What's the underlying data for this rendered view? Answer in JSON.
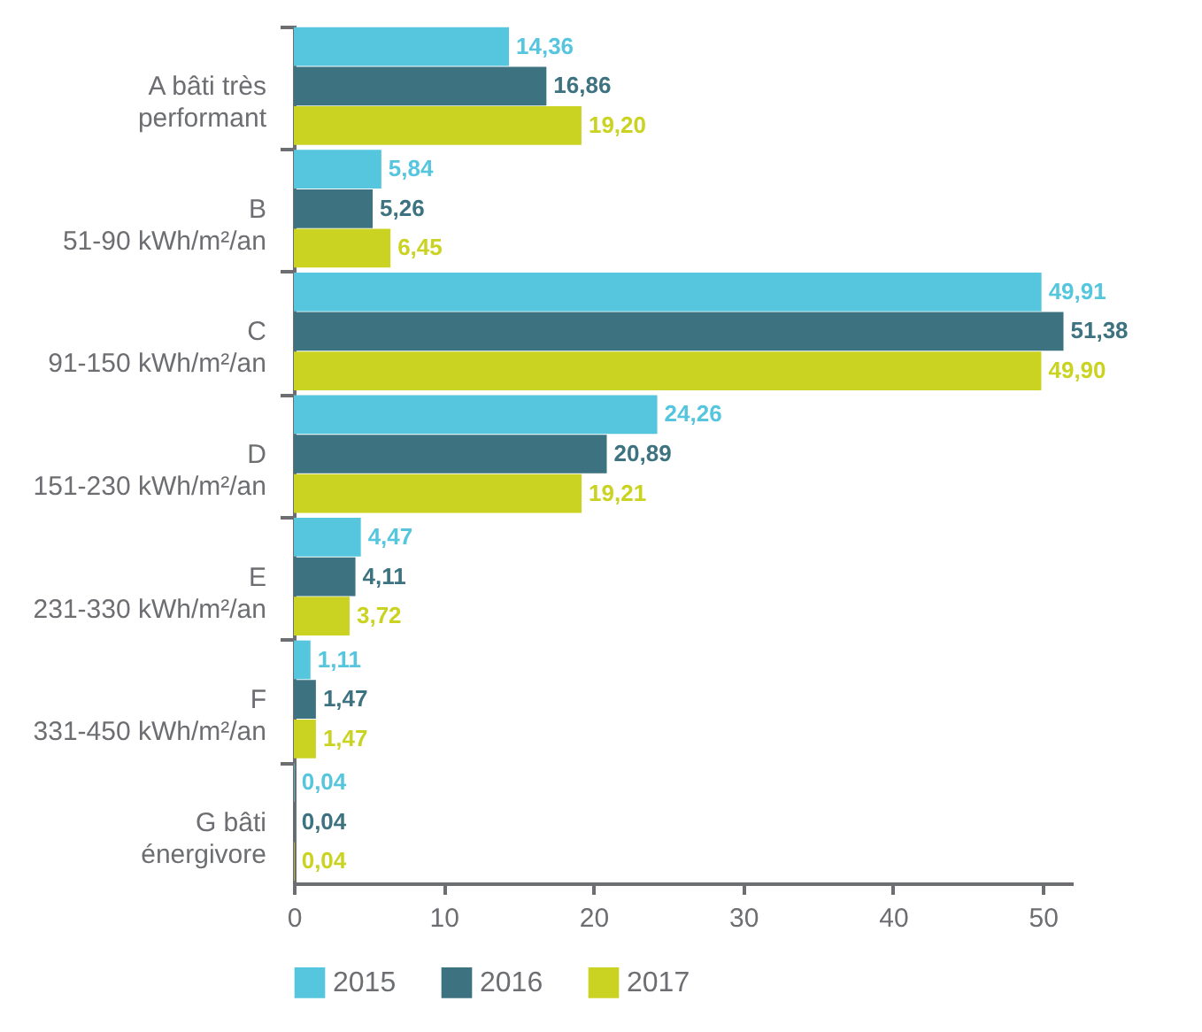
{
  "chart_data": {
    "type": "bar",
    "orientation": "horizontal",
    "categories": [
      "A bâti très\nperformant",
      "B\n51-90 kWh/m²/an",
      "C\n91-150 kWh/m²/an",
      "D\n151-230 kWh/m²/an",
      "E\n231-330 kWh/m²/an",
      "F\n331-450 kWh/m²/an",
      "G bâti\nénergivore"
    ],
    "series": [
      {
        "name": "2015",
        "color": "#55c6de",
        "values": [
          14.36,
          5.84,
          49.91,
          24.26,
          4.47,
          1.11,
          0.04
        ],
        "value_labels": [
          "14,36",
          "5,84",
          "49,91",
          "24,26",
          "4,47",
          "1,11",
          "0,04"
        ]
      },
      {
        "name": "2016",
        "color": "#3d7280",
        "values": [
          16.86,
          5.26,
          51.38,
          20.89,
          4.11,
          1.47,
          0.04
        ],
        "value_labels": [
          "16,86",
          "5,26",
          "51,38",
          "20,89",
          "4,11",
          "1,47",
          "0,04"
        ]
      },
      {
        "name": "2017",
        "color": "#cbd322",
        "values": [
          19.2,
          6.45,
          49.9,
          19.21,
          3.72,
          1.47,
          0.04
        ],
        "value_labels": [
          "19,20",
          "6,45",
          "49,90",
          "19,21",
          "3,72",
          "1,47",
          "0,04"
        ]
      }
    ],
    "xlim": [
      0,
      52
    ],
    "xticks": [
      0,
      10,
      20,
      30,
      40,
      50
    ],
    "grid": false,
    "legend": "bottom"
  }
}
